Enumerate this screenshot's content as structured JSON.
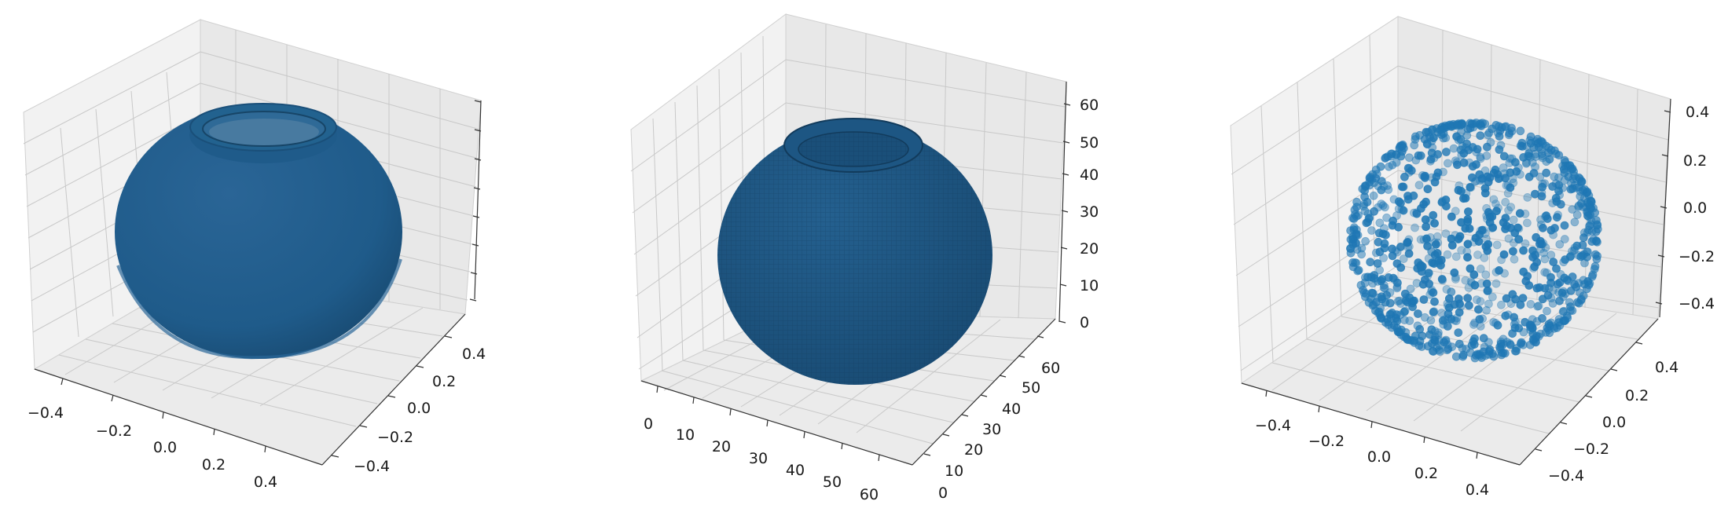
{
  "chart_data": [
    {
      "type": "surface",
      "description_visible": "3D mesh surface of a round vase/pot with a rim on top",
      "color": "#1f5b8a",
      "x_ticks": [
        "−0.4",
        "−0.2",
        "0.0",
        "0.2",
        "0.4"
      ],
      "y_ticks": [
        "−0.4",
        "−0.2",
        "0.0",
        "0.2",
        "0.4"
      ],
      "z_ticks": [
        "",
        "",
        "",
        "",
        "",
        "",
        "",
        ""
      ],
      "xlim": [
        -0.5,
        0.5
      ],
      "ylim": [
        -0.5,
        0.5
      ],
      "grid": true
    },
    {
      "type": "voxel",
      "color": "#1f5b8a",
      "x_ticks": [
        "0",
        "10",
        "20",
        "30",
        "40",
        "50",
        "60"
      ],
      "y_ticks": [
        "0",
        "10",
        "20",
        "30",
        "40",
        "50",
        "60"
      ],
      "z_ticks": [
        "0",
        "10",
        "20",
        "30",
        "40",
        "50",
        "60"
      ],
      "xlim": [
        0,
        64
      ],
      "ylim": [
        0,
        64
      ],
      "zlim": [
        0,
        64
      ],
      "grid": true
    },
    {
      "type": "scatter",
      "color": "#1f77b4",
      "n_points": 1000,
      "x_ticks": [
        "−0.4",
        "−0.2",
        "0.0",
        "0.2",
        "0.4"
      ],
      "y_ticks": [
        "−0.4",
        "−0.2",
        "0.0",
        "0.2",
        "0.4"
      ],
      "z_ticks": [
        "−0.4",
        "−0.2",
        "0.0",
        "0.2",
        "0.4"
      ],
      "xlim": [
        -0.5,
        0.5
      ],
      "ylim": [
        -0.5,
        0.5
      ],
      "zlim": [
        -0.5,
        0.5
      ],
      "grid": true
    }
  ]
}
